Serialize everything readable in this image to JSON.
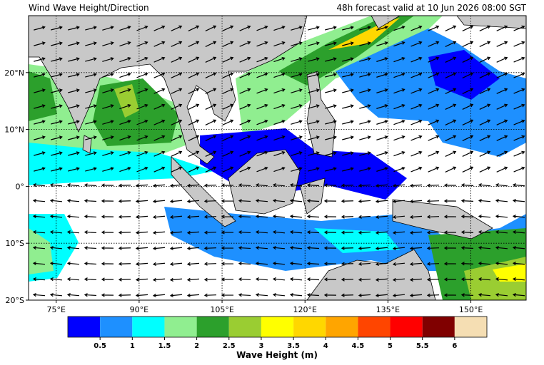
{
  "map": {
    "title": "Wind Wave Height/Direction",
    "subtitle": "48h forecast valid at 10 Jun 2026 08:00 SGT",
    "xlim": [
      70,
      160
    ],
    "ylim": [
      -20,
      30
    ],
    "xticks": [
      {
        "value": 75,
        "label": "75°E"
      },
      {
        "value": 90,
        "label": "90°E"
      },
      {
        "value": 105,
        "label": "105°E"
      },
      {
        "value": 120,
        "label": "120°E"
      },
      {
        "value": 135,
        "label": "135°E"
      },
      {
        "value": 150,
        "label": "150°E"
      }
    ],
    "yticks": [
      {
        "value": 20,
        "label": "20°N"
      },
      {
        "value": 10,
        "label": "10°N"
      },
      {
        "value": 0,
        "label": "0°"
      },
      {
        "value": -10,
        "label": "10°S"
      },
      {
        "value": -20,
        "label": "20°S"
      }
    ],
    "grid": true,
    "colorbar": {
      "label": "Wave Height (m)",
      "colors": [
        "#0000ff",
        "#1e90ff",
        "#00ffff",
        "#90ee90",
        "#2ca02c",
        "#9acd32",
        "#ffff00",
        "#ffd700",
        "#ffa500",
        "#ff4500",
        "#ff0000",
        "#800000",
        "#f5deb3"
      ],
      "ticks": [
        0.5,
        1,
        1.5,
        2,
        2.5,
        3,
        3.5,
        4,
        4.5,
        5,
        5.5,
        6
      ]
    }
  }
}
